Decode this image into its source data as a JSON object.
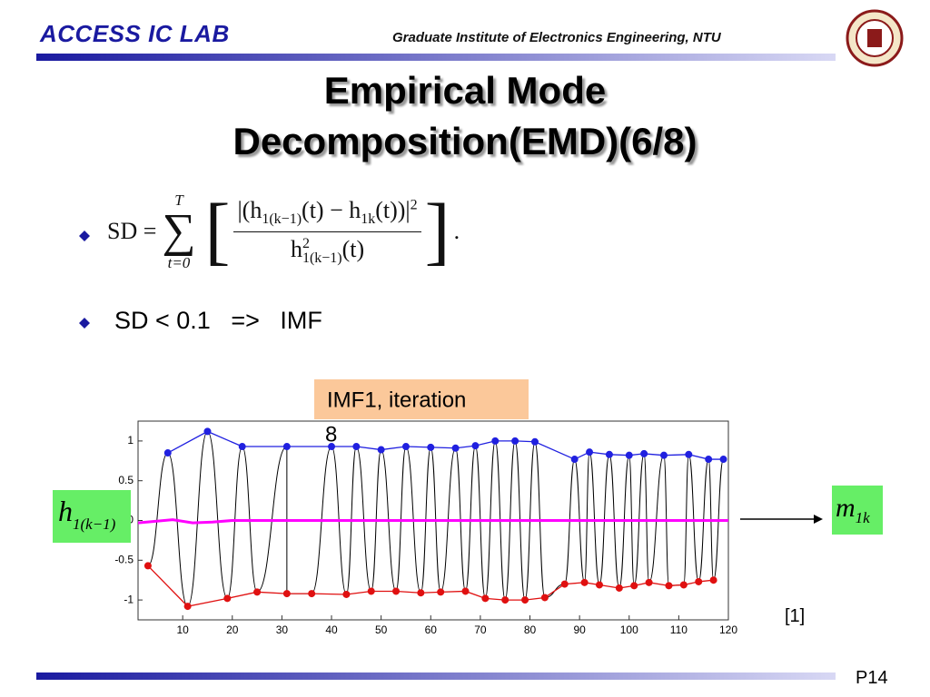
{
  "header": {
    "lab": "ACCESS IC LAB",
    "institute": "Graduate Institute of Electronics Engineering, NTU"
  },
  "title": {
    "lines": [
      "Empirical Mode",
      "Decomposition(EMD)(6/8)"
    ]
  },
  "formula": {
    "lhs": "SD =",
    "upper": "T",
    "sum": "∑",
    "lower": "t=0",
    "open": "[",
    "close": "]",
    "end": ".",
    "numerator": [
      "|(h",
      "1(k−1)",
      "(t) − h",
      "1k",
      "(t))|",
      "2"
    ],
    "denominator": [
      "h",
      "2",
      "1(k−1)",
      "(t)"
    ]
  },
  "bullet2": "SD < 0.1   =>   IMF",
  "figure": {
    "label": "IMF1, iteration",
    "iteration": "8",
    "input": [
      "h",
      "1(k−1)"
    ],
    "output": [
      "m",
      "1k"
    ],
    "citation": "[1]"
  },
  "chart_data": {
    "type": "line",
    "xlim": [
      1,
      120
    ],
    "ylim": [
      -1.25,
      1.25
    ],
    "xticks": [
      10,
      20,
      30,
      40,
      50,
      60,
      70,
      80,
      90,
      100,
      110,
      120
    ],
    "yticks": [
      -1,
      -0.5,
      0,
      0.5,
      1
    ],
    "series": [
      {
        "name": "upper",
        "color": "#2020e0",
        "x": [
          7,
          15,
          22,
          31,
          40,
          45,
          50,
          55,
          60,
          65,
          69,
          73,
          77,
          81,
          89,
          92,
          96,
          100,
          103,
          107,
          112,
          116,
          119
        ],
        "values": [
          0.85,
          1.12,
          0.93,
          0.93,
          0.93,
          0.93,
          0.89,
          0.93,
          0.92,
          0.91,
          0.94,
          1.0,
          1.0,
          0.99,
          0.77,
          0.86,
          0.83,
          0.82,
          0.84,
          0.82,
          0.83,
          0.77,
          0.77
        ]
      },
      {
        "name": "lower",
        "color": "#e01010",
        "x": [
          3,
          11,
          19,
          25,
          31,
          36,
          43,
          48,
          53,
          58,
          62,
          67,
          71,
          75,
          79,
          83,
          87,
          91,
          94,
          98,
          101,
          104,
          108,
          111,
          114,
          117
        ],
        "values": [
          -0.57,
          -1.08,
          -0.98,
          -0.9,
          -0.92,
          -0.92,
          -0.93,
          -0.89,
          -0.89,
          -0.91,
          -0.9,
          -0.89,
          -0.98,
          -1.0,
          -1.0,
          -0.97,
          -0.8,
          -0.78,
          -0.81,
          -0.85,
          -0.82,
          -0.78,
          -0.82,
          -0.81,
          -0.77,
          -0.75
        ]
      },
      {
        "name": "mean",
        "color": "#ff00ff",
        "x": [
          1,
          8,
          12,
          16,
          20,
          120
        ],
        "values": [
          -0.03,
          0.01,
          -0.03,
          -0.02,
          0,
          0
        ]
      }
    ]
  },
  "page": "P14"
}
